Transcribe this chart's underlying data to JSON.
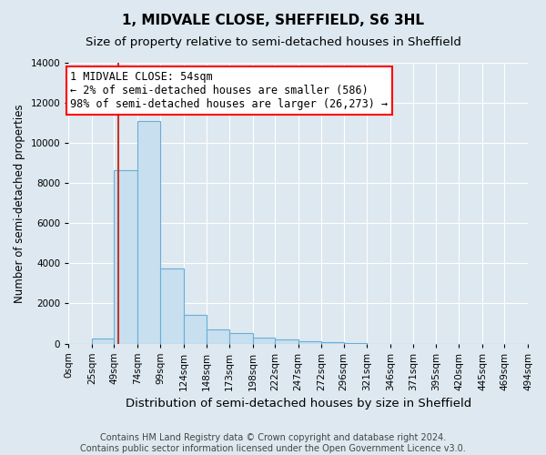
{
  "title": "1, MIDVALE CLOSE, SHEFFIELD, S6 3HL",
  "subtitle": "Size of property relative to semi-detached houses in Sheffield",
  "xlabel": "Distribution of semi-detached houses by size in Sheffield",
  "ylabel": "Number of semi-detached properties",
  "footnote": "Contains HM Land Registry data © Crown copyright and database right 2024.\nContains public sector information licensed under the Open Government Licence v3.0.",
  "bar_edges": [
    0,
    25,
    49,
    74,
    99,
    124,
    148,
    173,
    198,
    222,
    247,
    272,
    296,
    321,
    346,
    371,
    395,
    420,
    445,
    469,
    494
  ],
  "bar_heights": [
    0,
    250,
    8650,
    11100,
    3750,
    1450,
    700,
    500,
    280,
    200,
    130,
    70,
    30,
    0,
    0,
    0,
    0,
    0,
    0,
    0
  ],
  "bar_color": "#c8dff0",
  "bar_edge_color": "#6aaed6",
  "background_color": "#dde8f0",
  "property_size": 54,
  "annotation_text": "1 MIDVALE CLOSE: 54sqm\n← 2% of semi-detached houses are smaller (586)\n98% of semi-detached houses are larger (26,273) →",
  "annotation_box_color": "red",
  "vline_color": "#c0392b",
  "ylim": [
    0,
    14000
  ],
  "tick_labels": [
    "0sqm",
    "25sqm",
    "49sqm",
    "74sqm",
    "99sqm",
    "124sqm",
    "148sqm",
    "173sqm",
    "198sqm",
    "222sqm",
    "247sqm",
    "272sqm",
    "296sqm",
    "321sqm",
    "346sqm",
    "371sqm",
    "395sqm",
    "420sqm",
    "445sqm",
    "469sqm",
    "494sqm"
  ],
  "title_fontsize": 11,
  "subtitle_fontsize": 9.5,
  "xlabel_fontsize": 9.5,
  "ylabel_fontsize": 8.5,
  "tick_fontsize": 7.5,
  "annotation_fontsize": 8.5,
  "footnote_fontsize": 7
}
